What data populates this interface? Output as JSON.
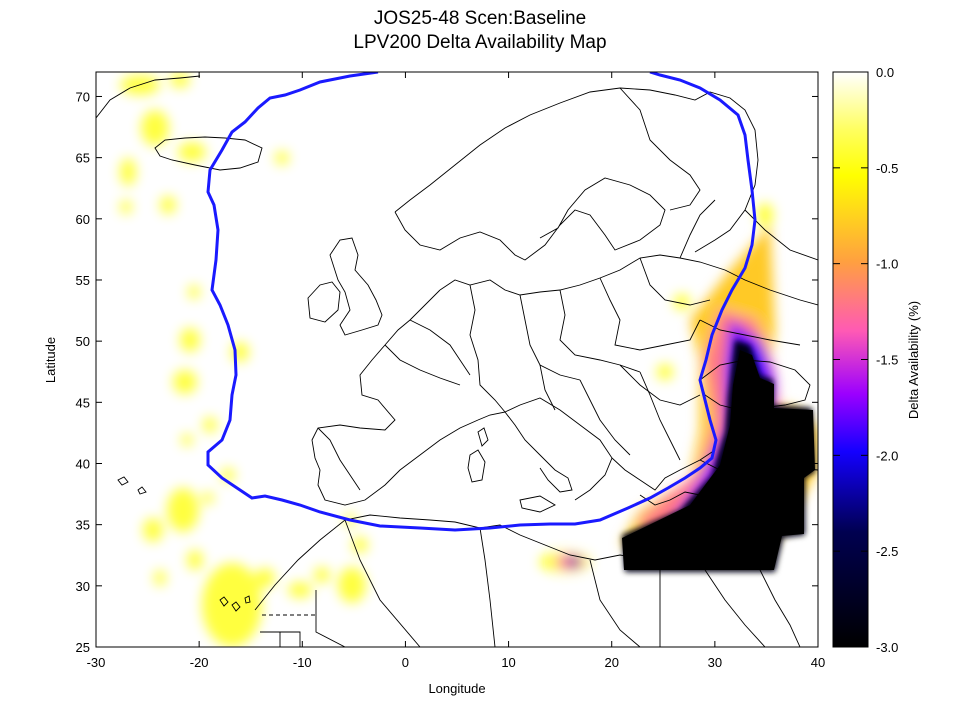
{
  "title": [
    "JOS25-48 Scen:Baseline",
    "LPV200 Delta Availability Map"
  ],
  "x_axis": {
    "label": "Longitude",
    "ticks": [
      -30,
      -20,
      -10,
      0,
      10,
      20,
      30,
      40
    ],
    "range": [
      -30,
      40
    ]
  },
  "y_axis": {
    "label": "Latitude",
    "ticks": [
      25,
      30,
      35,
      40,
      45,
      50,
      55,
      60,
      65,
      70
    ],
    "range": [
      25,
      72
    ]
  },
  "colorbar": {
    "label": "Delta Availability (%)",
    "ticks": [
      "0.0",
      "-0.5",
      "-1.0",
      "-1.5",
      "-2.0",
      "-2.5",
      "-3.0"
    ],
    "range": [
      -3.0,
      0.0
    ],
    "colors": [
      "#ffffff",
      "#ffff00",
      "#ffa040",
      "#ff5ab4",
      "#9b00ff",
      "#1400ff",
      "#000040",
      "#000000"
    ]
  },
  "service_contour_color": "#1a1aff",
  "coastline_color": "#000000"
}
